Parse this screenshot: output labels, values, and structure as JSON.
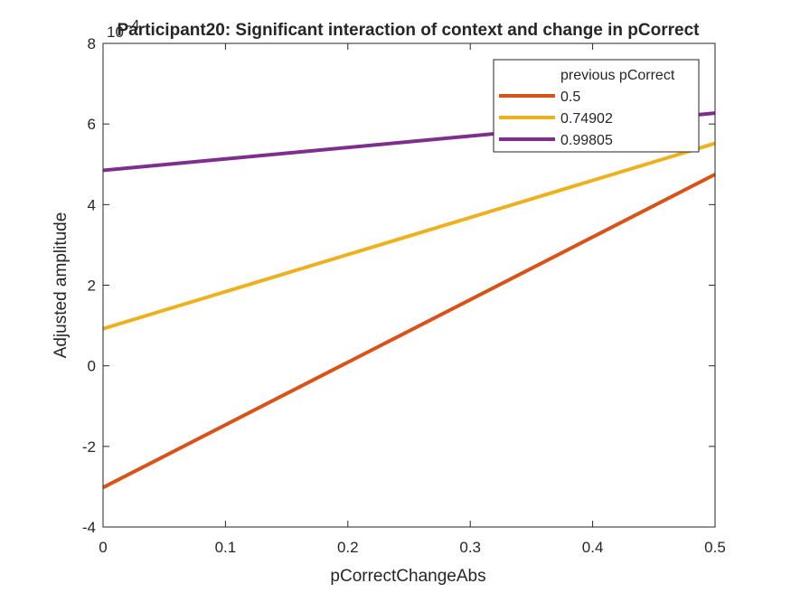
{
  "chart_data": {
    "type": "line",
    "title": "Participant20: Significant interaction of context and change in pCorrect",
    "xlabel": "pCorrectChangeAbs",
    "ylabel": "Adjusted amplitude",
    "y_exponent_label": "10",
    "y_exponent_power": "-4",
    "xlim": [
      0,
      0.5
    ],
    "ylim": [
      -4,
      8
    ],
    "xticks": [
      0,
      0.1,
      0.2,
      0.3,
      0.4,
      0.5
    ],
    "xtick_labels": [
      "0",
      "0.1",
      "0.2",
      "0.3",
      "0.4",
      "0.5"
    ],
    "yticks": [
      -4,
      -2,
      0,
      2,
      4,
      6,
      8
    ],
    "ytick_labels": [
      "-4",
      "-2",
      "0",
      "2",
      "4",
      "6",
      "8"
    ],
    "grid": false,
    "legend": {
      "title": "previous pCorrect",
      "placement": "top-right"
    },
    "series": [
      {
        "name": "0.5",
        "color": "#D95319",
        "x": [
          0,
          0.5
        ],
        "y": [
          -3.02,
          4.75
        ]
      },
      {
        "name": "0.74902",
        "color": "#EDB120",
        "x": [
          0,
          0.5
        ],
        "y": [
          0.92,
          5.52
        ]
      },
      {
        "name": "0.99805",
        "color": "#7E2F8E",
        "x": [
          0,
          0.5
        ],
        "y": [
          4.85,
          6.27
        ]
      }
    ]
  }
}
